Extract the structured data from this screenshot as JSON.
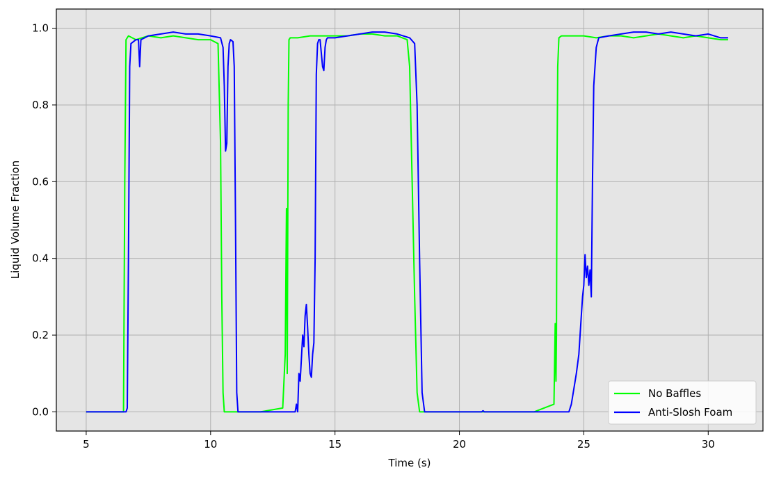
{
  "chart_data": {
    "type": "line",
    "title": "",
    "xlabel": "Time (s)",
    "ylabel": "Liquid Volume Fraction",
    "xlim": [
      3.8,
      32.2
    ],
    "ylim": [
      -0.05,
      1.05
    ],
    "xticks": [
      5,
      10,
      15,
      20,
      25,
      30
    ],
    "yticks": [
      0.0,
      0.2,
      0.4,
      0.6,
      0.8,
      1.0
    ],
    "xtick_labels": [
      "5",
      "10",
      "15",
      "20",
      "25",
      "30"
    ],
    "ytick_labels": [
      "0.0",
      "0.2",
      "0.4",
      "0.6",
      "0.8",
      "1.0"
    ],
    "grid": true,
    "background": "#e5e5e5",
    "legend_position": "lower-right",
    "series": [
      {
        "name": "No Baffles",
        "color": "#00ff00",
        "x": [
          5.0,
          6.5,
          6.55,
          6.6,
          6.7,
          7.0,
          7.5,
          8.0,
          8.5,
          9.0,
          9.5,
          10.0,
          10.3,
          10.4,
          10.45,
          10.5,
          10.55,
          10.6,
          11.0,
          12.0,
          12.9,
          13.0,
          13.05,
          13.08,
          13.1,
          13.12,
          13.15,
          13.2,
          13.5,
          14.0,
          14.5,
          15.0,
          15.5,
          16.0,
          16.5,
          17.0,
          17.5,
          17.9,
          18.0,
          18.1,
          18.2,
          18.3,
          18.4,
          19.0,
          20.0,
          21.0,
          22.0,
          23.0,
          23.8,
          23.85,
          23.88,
          23.9,
          23.92,
          23.95,
          24.0,
          24.1,
          24.5,
          25.0,
          25.5,
          26.0,
          26.5,
          27.0,
          27.5,
          28.0,
          28.5,
          29.0,
          29.5,
          30.0,
          30.5,
          30.8
        ],
        "y": [
          0.0,
          0.0,
          0.6,
          0.97,
          0.98,
          0.97,
          0.98,
          0.975,
          0.98,
          0.975,
          0.97,
          0.97,
          0.96,
          0.7,
          0.3,
          0.05,
          0.0,
          0.0,
          0.0,
          0.0,
          0.01,
          0.15,
          0.53,
          0.1,
          0.45,
          0.8,
          0.97,
          0.975,
          0.975,
          0.98,
          0.98,
          0.98,
          0.98,
          0.985,
          0.985,
          0.98,
          0.98,
          0.97,
          0.9,
          0.6,
          0.3,
          0.05,
          0.0,
          0.0,
          0.0,
          0.0,
          0.0,
          0.0,
          0.02,
          0.23,
          0.08,
          0.2,
          0.6,
          0.9,
          0.975,
          0.98,
          0.98,
          0.98,
          0.975,
          0.98,
          0.98,
          0.975,
          0.98,
          0.985,
          0.98,
          0.975,
          0.98,
          0.975,
          0.97,
          0.97
        ]
      },
      {
        "name": "Anti-Slosh Foam",
        "color": "#0000ff",
        "x": [
          5.0,
          6.6,
          6.65,
          6.7,
          6.75,
          6.8,
          7.0,
          7.1,
          7.15,
          7.2,
          7.5,
          8.0,
          8.5,
          9.0,
          9.5,
          10.0,
          10.4,
          10.5,
          10.55,
          10.6,
          10.65,
          10.7,
          10.75,
          10.8,
          10.9,
          10.95,
          11.0,
          11.05,
          11.1,
          11.2,
          12.0,
          13.0,
          13.4,
          13.45,
          13.5,
          13.55,
          13.6,
          13.7,
          13.75,
          13.8,
          13.85,
          13.9,
          13.95,
          14.0,
          14.05,
          14.1,
          14.15,
          14.2,
          14.25,
          14.3,
          14.35,
          14.4,
          14.5,
          14.55,
          14.6,
          14.65,
          14.7,
          15.0,
          15.5,
          16.0,
          16.5,
          17.0,
          17.5,
          18.0,
          18.2,
          18.3,
          18.4,
          18.5,
          18.6,
          18.7,
          19.0,
          20.0,
          20.9,
          20.95,
          21.0,
          22.0,
          23.0,
          24.0,
          24.4,
          24.5,
          24.6,
          24.7,
          24.8,
          24.9,
          24.95,
          25.0,
          25.05,
          25.1,
          25.15,
          25.2,
          25.25,
          25.3,
          25.35,
          25.4,
          25.45,
          25.5,
          25.6,
          26.0,
          26.5,
          27.0,
          27.5,
          28.0,
          28.5,
          29.0,
          29.5,
          30.0,
          30.5,
          30.8
        ],
        "y": [
          0.0,
          0.0,
          0.01,
          0.4,
          0.9,
          0.96,
          0.97,
          0.97,
          0.9,
          0.97,
          0.98,
          0.985,
          0.99,
          0.985,
          0.985,
          0.98,
          0.975,
          0.95,
          0.85,
          0.68,
          0.7,
          0.9,
          0.96,
          0.97,
          0.965,
          0.9,
          0.5,
          0.05,
          0.0,
          0.0,
          0.0,
          0.0,
          0.0,
          0.02,
          0.0,
          0.1,
          0.08,
          0.2,
          0.17,
          0.25,
          0.28,
          0.22,
          0.15,
          0.1,
          0.09,
          0.15,
          0.18,
          0.4,
          0.88,
          0.96,
          0.97,
          0.97,
          0.9,
          0.89,
          0.95,
          0.97,
          0.975,
          0.975,
          0.98,
          0.985,
          0.99,
          0.99,
          0.985,
          0.975,
          0.96,
          0.8,
          0.4,
          0.05,
          0.0,
          0.0,
          0.0,
          0.0,
          0.0,
          0.003,
          0.0,
          0.0,
          0.0,
          0.0,
          0.0,
          0.02,
          0.06,
          0.1,
          0.15,
          0.25,
          0.3,
          0.33,
          0.41,
          0.35,
          0.38,
          0.33,
          0.37,
          0.3,
          0.6,
          0.85,
          0.9,
          0.95,
          0.975,
          0.98,
          0.985,
          0.99,
          0.99,
          0.985,
          0.99,
          0.985,
          0.98,
          0.985,
          0.975,
          0.975
        ]
      }
    ]
  }
}
